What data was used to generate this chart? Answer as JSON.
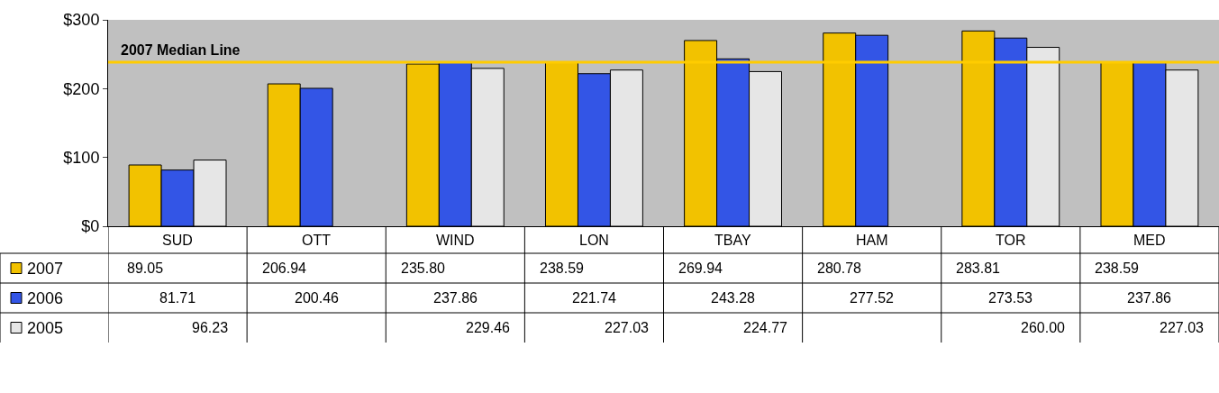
{
  "chart_data": {
    "type": "bar",
    "categories": [
      "SUD",
      "OTT",
      "WIND",
      "LON",
      "TBAY",
      "HAM",
      "TOR",
      "MED"
    ],
    "series": [
      {
        "name": "2007",
        "color": "#f2c200",
        "values": [
          89.05,
          206.94,
          235.8,
          238.59,
          269.94,
          280.78,
          283.81,
          238.59
        ],
        "value_labels": [
          "89.05",
          "206.94",
          "235.80",
          "238.59",
          "269.94",
          "280.78",
          "283.81",
          "238.59"
        ]
      },
      {
        "name": "2006",
        "color": "#3355e6",
        "values": [
          81.71,
          200.46,
          237.86,
          221.74,
          243.28,
          277.52,
          273.53,
          237.86
        ],
        "value_labels": [
          "81.71",
          "200.46",
          "237.86",
          "221.74",
          "243.28",
          "277.52",
          "273.53",
          "237.86"
        ]
      },
      {
        "name": "2005",
        "color": "#e6e6e6",
        "values": [
          96.23,
          null,
          229.46,
          227.03,
          224.77,
          null,
          260.0,
          227.03
        ],
        "value_labels": [
          "96.23",
          null,
          "229.46",
          "227.03",
          "224.77",
          null,
          "260.00",
          "227.03"
        ]
      }
    ],
    "ylim": [
      0,
      300
    ],
    "yticks": [
      {
        "value": 0,
        "label": "$0"
      },
      {
        "value": 100,
        "label": "$100"
      },
      {
        "value": 200,
        "label": "$200"
      },
      {
        "value": 300,
        "label": "$300"
      }
    ],
    "ref_lines": [
      {
        "axis": "y",
        "value": 238.59,
        "label": "2007 Median Line",
        "color": "#ffcc00"
      }
    ],
    "grid": false,
    "legend": "left"
  }
}
